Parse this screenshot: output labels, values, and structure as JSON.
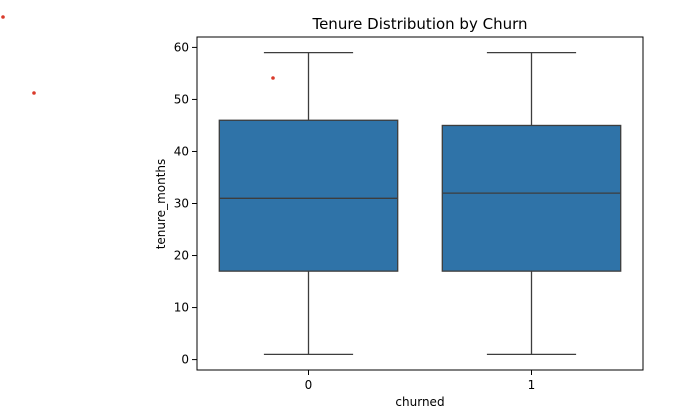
{
  "chart_data": {
    "type": "box",
    "title": "Tenure Distribution by Churn",
    "xlabel": "churned",
    "ylabel": "tenure_months",
    "categories": [
      "0",
      "1"
    ],
    "ylim": [
      -2,
      62
    ],
    "yticks": [
      0,
      10,
      20,
      30,
      40,
      50,
      60
    ],
    "grid": false,
    "box_color": "#2f73a8",
    "line_color": "#3d3d3d",
    "boxes": [
      {
        "category": "0",
        "whislo": 1,
        "q1": 17,
        "median": 31,
        "q3": 46,
        "whishi": 59
      },
      {
        "category": "1",
        "whislo": 1,
        "q1": 17,
        "median": 32,
        "q3": 45,
        "whishi": 59
      }
    ]
  },
  "stray_points": [
    {
      "color": "#d93a2b"
    },
    {
      "color": "#d93a2b"
    },
    {
      "color": "#d93a2b"
    }
  ]
}
